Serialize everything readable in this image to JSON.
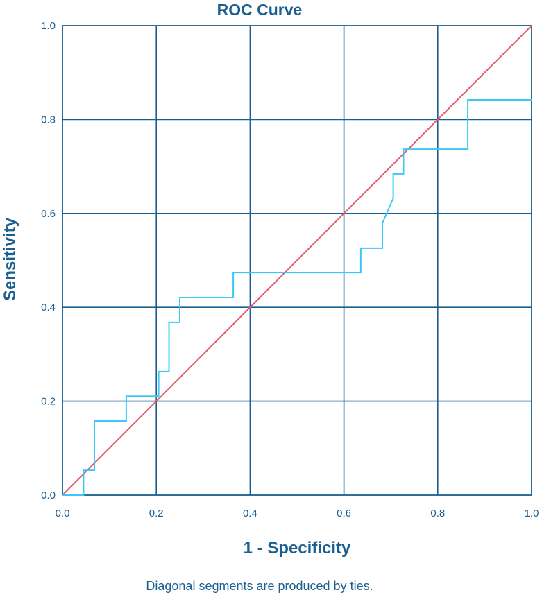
{
  "chart_data": {
    "type": "line",
    "title": "ROC Curve",
    "xlabel": "1 - Specificity",
    "ylabel": "Sensitivity",
    "footnote": "Diagonal segments are produced by ties.",
    "xlim": [
      0,
      1
    ],
    "ylim": [
      0,
      1
    ],
    "xticks": [
      "0.0",
      "0.2",
      "0.4",
      "0.6",
      "0.8",
      "1.0"
    ],
    "yticks": [
      "0.0",
      "0.2",
      "0.4",
      "0.6",
      "0.8",
      "1.0"
    ],
    "grid": true,
    "series": [
      {
        "kind": "roc",
        "color": "#3cc8f5",
        "points": [
          [
            0.0,
            0.0
          ],
          [
            0.045,
            0.0
          ],
          [
            0.045,
            0.053
          ],
          [
            0.068,
            0.053
          ],
          [
            0.068,
            0.158
          ],
          [
            0.136,
            0.158
          ],
          [
            0.136,
            0.211
          ],
          [
            0.205,
            0.211
          ],
          [
            0.205,
            0.263
          ],
          [
            0.227,
            0.263
          ],
          [
            0.227,
            0.368
          ],
          [
            0.25,
            0.368
          ],
          [
            0.25,
            0.421
          ],
          [
            0.364,
            0.421
          ],
          [
            0.364,
            0.474
          ],
          [
            0.636,
            0.474
          ],
          [
            0.636,
            0.526
          ],
          [
            0.682,
            0.526
          ],
          [
            0.682,
            0.579
          ],
          [
            0.705,
            0.632
          ],
          [
            0.705,
            0.684
          ],
          [
            0.727,
            0.684
          ],
          [
            0.727,
            0.737
          ],
          [
            0.864,
            0.737
          ],
          [
            0.864,
            0.842
          ],
          [
            1.0,
            0.842
          ]
        ]
      },
      {
        "kind": "reference",
        "color": "#e8596a",
        "points": [
          [
            0.0,
            0.0
          ],
          [
            1.0,
            1.0
          ]
        ]
      }
    ],
    "colors": {
      "text": "#1a5f8f",
      "grid": "#1a5f8f",
      "background": "#ffffff"
    }
  }
}
